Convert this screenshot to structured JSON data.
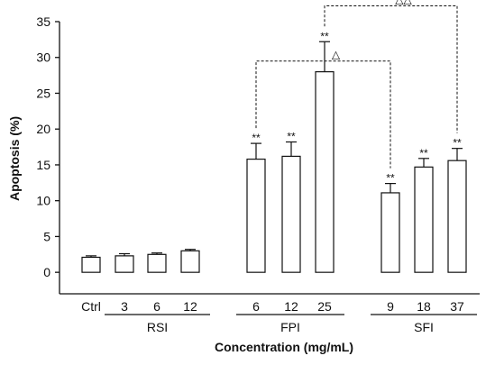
{
  "chart_data": {
    "type": "bar",
    "title": "",
    "xlabel": "Concentration (mg/mL)",
    "ylabel": "Apoptosis (%)",
    "ylim": [
      -3,
      35
    ],
    "yticks": [
      0,
      5,
      10,
      15,
      20,
      25,
      30,
      35
    ],
    "grid": false,
    "legend": "none",
    "categories": [
      "Ctrl",
      "3",
      "6",
      "12",
      "6",
      "12",
      "25",
      "9",
      "18",
      "37"
    ],
    "groups": [
      {
        "label": "RSI",
        "members": [
          1,
          2,
          3
        ]
      },
      {
        "label": "FPI",
        "members": [
          4,
          5,
          6
        ]
      },
      {
        "label": "SFI",
        "members": [
          7,
          8,
          9
        ]
      }
    ],
    "values": [
      2.1,
      2.3,
      2.5,
      3.0,
      15.8,
      16.2,
      28.0,
      11.1,
      14.7,
      15.6
    ],
    "errors": [
      0.2,
      0.3,
      0.2,
      0.2,
      2.2,
      2.0,
      4.2,
      1.3,
      1.2,
      1.7
    ],
    "significance": [
      "",
      "",
      "",
      "",
      "**",
      "**",
      "**",
      "**",
      "**",
      "**"
    ],
    "comparisons": [
      {
        "from": 4,
        "to": 7,
        "y": 29.5,
        "label": "△"
      },
      {
        "from": 6,
        "to": 9,
        "y": 37.2,
        "label": "△△"
      }
    ]
  }
}
